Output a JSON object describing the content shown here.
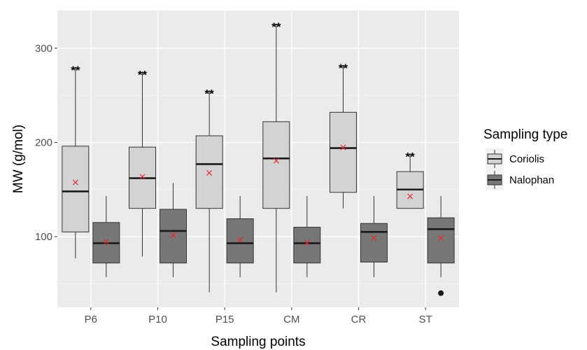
{
  "chart_data": {
    "type": "boxplot",
    "title": "",
    "xlabel": "Sampling points",
    "ylabel": "MW (g/mol)",
    "ylim": [
      25,
      340
    ],
    "yticks": [
      100,
      200,
      300
    ],
    "grid": true,
    "categories": [
      "P6",
      "P10",
      "P15",
      "CM",
      "CR",
      "ST"
    ],
    "legend": {
      "title": "Sampling type",
      "placement": "right"
    },
    "series": [
      {
        "name": "Coriolis",
        "color": "#d3d3d3",
        "boxes": [
          {
            "min": 77,
            "q1": 105,
            "median": 148,
            "q3": 196,
            "max": 280,
            "mean": 158
          },
          {
            "min": 79,
            "q1": 130,
            "median": 162,
            "q3": 195,
            "max": 275,
            "mean": 164
          },
          {
            "min": 41,
            "q1": 130,
            "median": 177,
            "q3": 207,
            "max": 255,
            "mean": 168
          },
          {
            "min": 41,
            "q1": 130,
            "median": 183,
            "q3": 222,
            "max": 326,
            "mean": 181
          },
          {
            "min": 130,
            "q1": 147,
            "median": 194,
            "q3": 232,
            "max": 282,
            "mean": 195
          },
          {
            "min": 130,
            "q1": 130,
            "median": 150,
            "q3": 169,
            "max": 188,
            "mean": 143
          }
        ]
      },
      {
        "name": "Nalophan",
        "color": "#777777",
        "boxes": [
          {
            "min": 57,
            "q1": 72,
            "median": 93,
            "q3": 115,
            "max": 143,
            "mean": 95
          },
          {
            "min": 57,
            "q1": 72,
            "median": 106,
            "q3": 129,
            "max": 157,
            "mean": 102
          },
          {
            "min": 57,
            "q1": 72,
            "median": 93,
            "q3": 119,
            "max": 143,
            "mean": 97
          },
          {
            "min": 57,
            "q1": 72,
            "median": 93,
            "q3": 110,
            "max": 143,
            "mean": 94
          },
          {
            "min": 57,
            "q1": 73,
            "median": 105,
            "q3": 114,
            "max": 143,
            "mean": 99
          },
          {
            "min": 57,
            "q1": 72,
            "median": 108,
            "q3": 120,
            "max": 143,
            "mean": 99,
            "outliers": [
              40
            ]
          }
        ]
      }
    ],
    "annotations": [
      {
        "category": "P6",
        "text": "**",
        "y": 280
      },
      {
        "category": "P10",
        "text": "**",
        "y": 275
      },
      {
        "category": "P15",
        "text": "**",
        "y": 255
      },
      {
        "category": "CM",
        "text": "**",
        "y": 326
      },
      {
        "category": "CR",
        "text": "**",
        "y": 282
      },
      {
        "category": "ST",
        "text": "**",
        "y": 188
      }
    ],
    "mean_marker": {
      "symbol": "×",
      "color": "#e8262b"
    }
  }
}
